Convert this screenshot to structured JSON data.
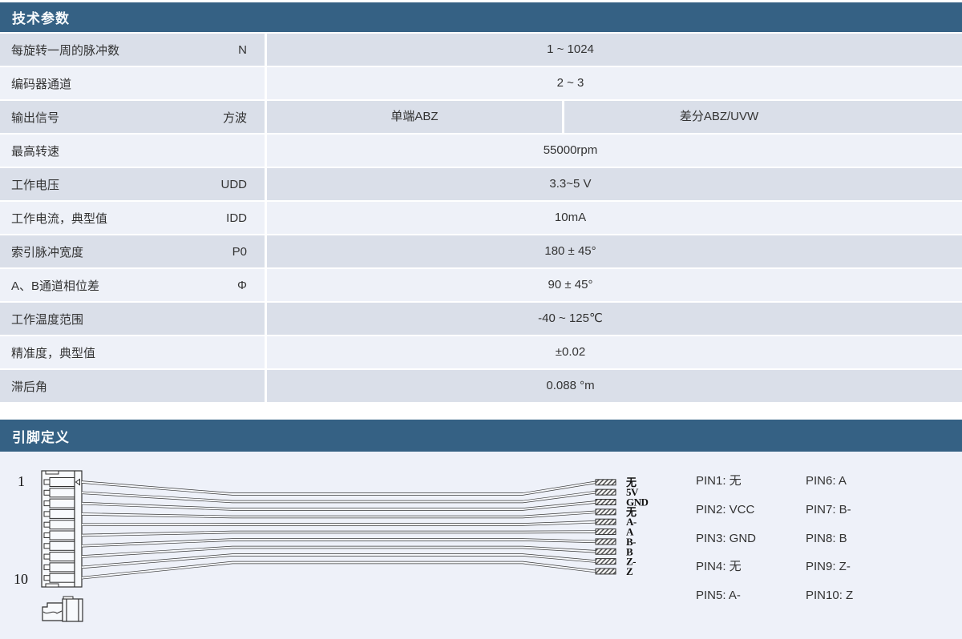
{
  "colors": {
    "header_bg": "#356184",
    "row_dark": "#dadfe9",
    "row_light": "#eef1f8",
    "diagram_bg": "#eef1f9",
    "text": "#333333"
  },
  "tech": {
    "header": "技术参数",
    "rows": [
      {
        "label": "每旋转一周的脉冲数",
        "symbol": "N",
        "value": "1 ~ 1024"
      },
      {
        "label": "编码器通道",
        "symbol": "",
        "value": "2 ~ 3"
      },
      {
        "label": "输出信号",
        "symbol": "方波",
        "value_left": "单端ABZ",
        "value_right": "差分ABZ/UVW"
      },
      {
        "label": "最高转速",
        "symbol": "",
        "value": "55000rpm"
      },
      {
        "label": "工作电压",
        "symbol": "UDD",
        "value": "3.3~5 V"
      },
      {
        "label": "工作电流，典型值",
        "symbol": "IDD",
        "value": "10mA"
      },
      {
        "label": "索引脉冲宽度",
        "symbol": "P0",
        "value": "180 ± 45°"
      },
      {
        "label": "A、B通道相位差",
        "symbol": "Φ",
        "value": "90 ± 45°"
      },
      {
        "label": "工作温度范围",
        "symbol": "",
        "value": "-40 ~ 125℃"
      },
      {
        "label": "精准度，典型值",
        "symbol": "",
        "value": "±0.02"
      },
      {
        "label": "滞后角",
        "symbol": "",
        "value": "0.088 °m"
      }
    ]
  },
  "pins": {
    "header": "引脚定义",
    "first_pin": "1",
    "last_pin": "10",
    "wire_labels": [
      "无",
      "5V",
      "GND",
      "无",
      "A-",
      "A",
      "B-",
      "B",
      "Z-",
      "Z"
    ],
    "list_col1": [
      "PIN1: 无",
      "PIN2: VCC",
      "PIN3: GND",
      "PIN4: 无",
      "PIN5: A-"
    ],
    "list_col2": [
      "PIN6: A",
      "PIN7: B-",
      "PIN8: B",
      "PIN9: Z-",
      "PIN10: Z"
    ]
  }
}
